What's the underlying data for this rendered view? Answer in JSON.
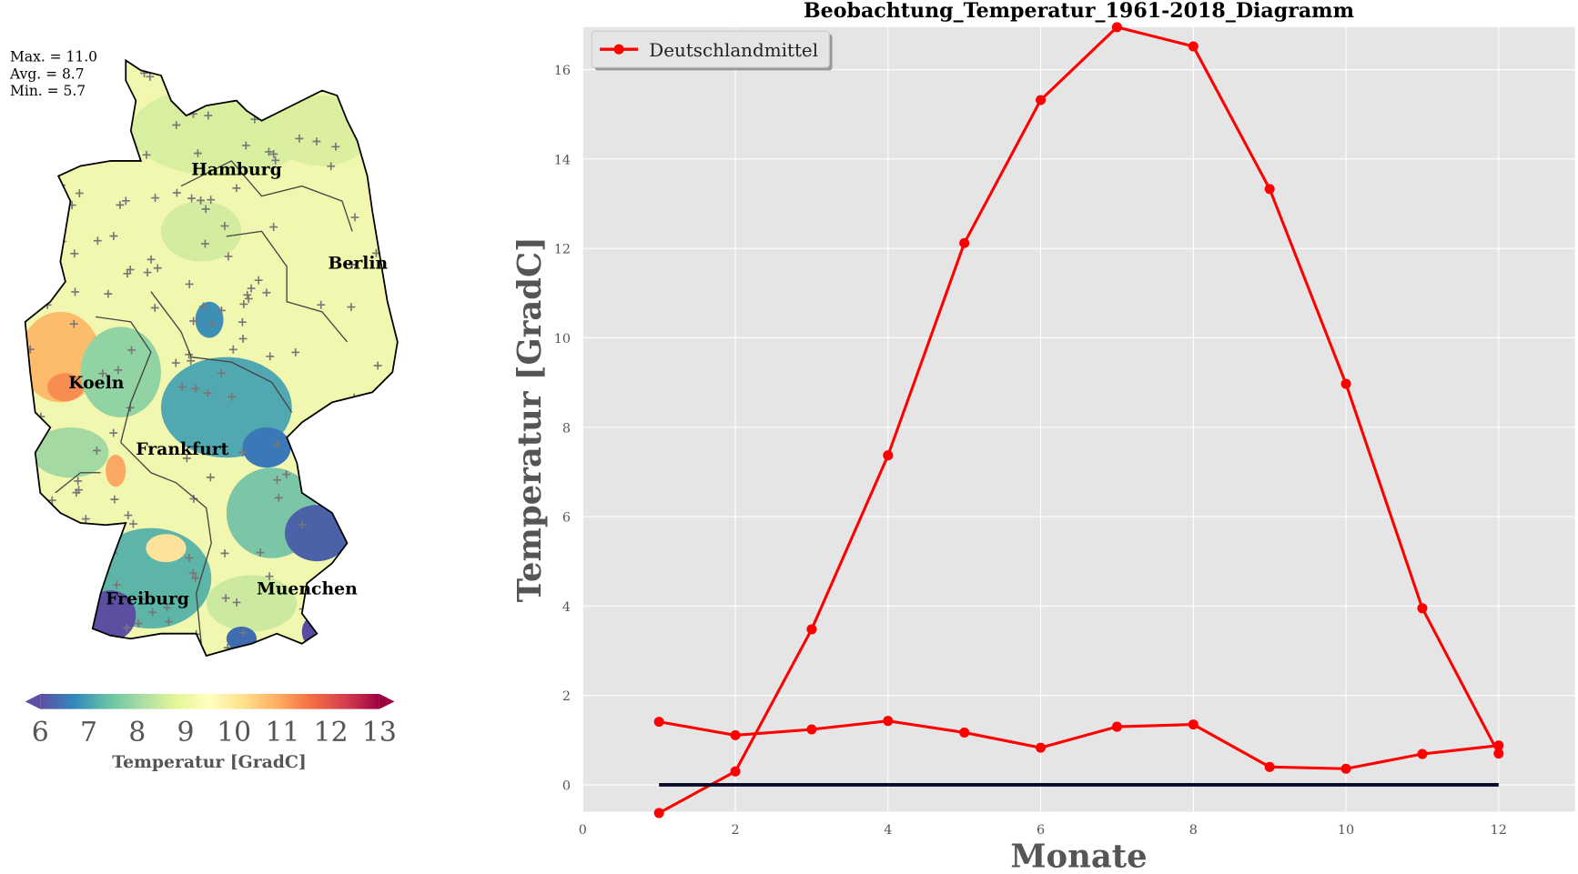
{
  "map": {
    "stats": [
      "Max. = 11.0",
      "Avg. = 8.7",
      "Min. = 5.7"
    ],
    "cities": [
      "Hamburg",
      "Berlin",
      "Koeln",
      "Frankfurt",
      "Freiburg",
      "Muenchen"
    ],
    "colorbar": {
      "ticks": [
        "6",
        "7",
        "8",
        "9",
        "10",
        "11",
        "12",
        "13"
      ],
      "range": [
        6,
        13
      ],
      "label": "Temperatur [GradC]",
      "colors": [
        "#5e4fa2",
        "#3288bd",
        "#66c2a5",
        "#abdda4",
        "#e6f598",
        "#ffffbf",
        "#fee08b",
        "#fdae61",
        "#f46d43",
        "#d53e4f",
        "#9e0142"
      ]
    }
  },
  "chart_data": {
    "type": "line",
    "title": "Beobachtung_Temperatur_1961-2018_Diagramm",
    "xlabel": "Monate",
    "ylabel": "Temperatur [GradC]",
    "xlim": [
      0,
      13
    ],
    "ylim": [
      -0.6,
      16.95
    ],
    "xticks": [
      0,
      2,
      4,
      6,
      8,
      10,
      12
    ],
    "yticks": [
      0,
      2,
      4,
      6,
      8,
      10,
      12,
      14,
      16
    ],
    "grid": true,
    "legend": {
      "position": "top-left",
      "entries": [
        "Deutschlandmittel"
      ]
    },
    "x": [
      1,
      2,
      3,
      4,
      5,
      6,
      7,
      8,
      9,
      10,
      11,
      12
    ],
    "series": [
      {
        "name": "Deutschlandmittel",
        "color": "#ff0000",
        "values": [
          -0.63,
          0.3,
          3.48,
          7.37,
          12.12,
          15.32,
          16.95,
          16.52,
          13.33,
          8.97,
          3.95,
          0.7
        ]
      },
      {
        "name": "",
        "color": "#ff0000",
        "values": [
          1.41,
          1.11,
          1.24,
          1.43,
          1.17,
          0.83,
          1.3,
          1.35,
          0.4,
          0.36,
          0.69,
          0.88
        ]
      },
      {
        "name": "",
        "color": "#0a0a2a",
        "values": [
          0,
          0,
          0,
          0,
          0,
          0,
          0,
          0,
          0,
          0,
          0,
          0
        ]
      }
    ]
  }
}
